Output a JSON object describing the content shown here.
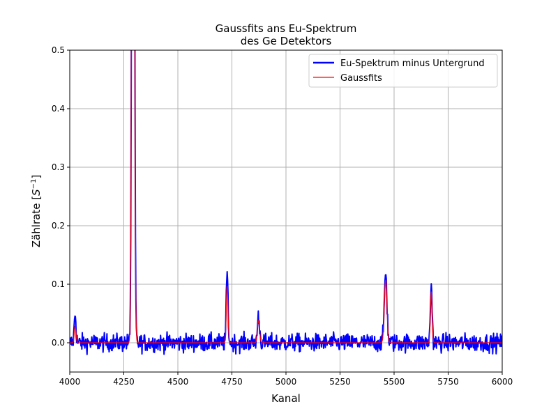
{
  "chart_data": {
    "type": "line",
    "title_line1": "Gaussfits ans Eu-Spektrum",
    "title_line2": "des Ge Detektors",
    "xlabel": "Kanal",
    "ylabel_text": "Zählrate [",
    "ylabel_unit": "S",
    "ylabel_exp": "−1",
    "ylabel_close": "]",
    "xlim": [
      4000,
      6000
    ],
    "ylim": [
      -0.05,
      0.5
    ],
    "xticks": [
      4000,
      4250,
      4500,
      4750,
      5000,
      5250,
      5500,
      5750,
      6000
    ],
    "yticks": [
      0.0,
      0.1,
      0.2,
      0.3,
      0.4,
      0.5
    ],
    "ytick_labels": [
      "0.0",
      "0.1",
      "0.2",
      "0.3",
      "0.4",
      "0.5"
    ],
    "grid": true,
    "legend_position": "top-right",
    "series": [
      {
        "name": "Eu-Spektrum minus Untergrund",
        "color": "#0000ff",
        "noise_amplitude": 0.02,
        "peaks": [
          {
            "center": 4025,
            "height": 0.05,
            "sigma": 4
          },
          {
            "center": 4293,
            "height": 2.0,
            "sigma": 5
          },
          {
            "center": 4728,
            "height": 0.12,
            "sigma": 4
          },
          {
            "center": 4873,
            "height": 0.045,
            "sigma": 5
          },
          {
            "center": 5461,
            "height": 0.12,
            "sigma": 6
          },
          {
            "center": 5672,
            "height": 0.1,
            "sigma": 4
          }
        ]
      },
      {
        "name": "Gaussfits",
        "color": "#ff0000",
        "peaks": [
          {
            "center": 4025,
            "height": 0.028,
            "sigma": 4
          },
          {
            "center": 4293,
            "height": 2.0,
            "sigma": 5
          },
          {
            "center": 4728,
            "height": 0.097,
            "sigma": 4
          },
          {
            "center": 4873,
            "height": 0.038,
            "sigma": 5
          },
          {
            "center": 5461,
            "height": 0.107,
            "sigma": 6
          },
          {
            "center": 5672,
            "height": 0.087,
            "sigma": 4
          }
        ]
      }
    ]
  }
}
